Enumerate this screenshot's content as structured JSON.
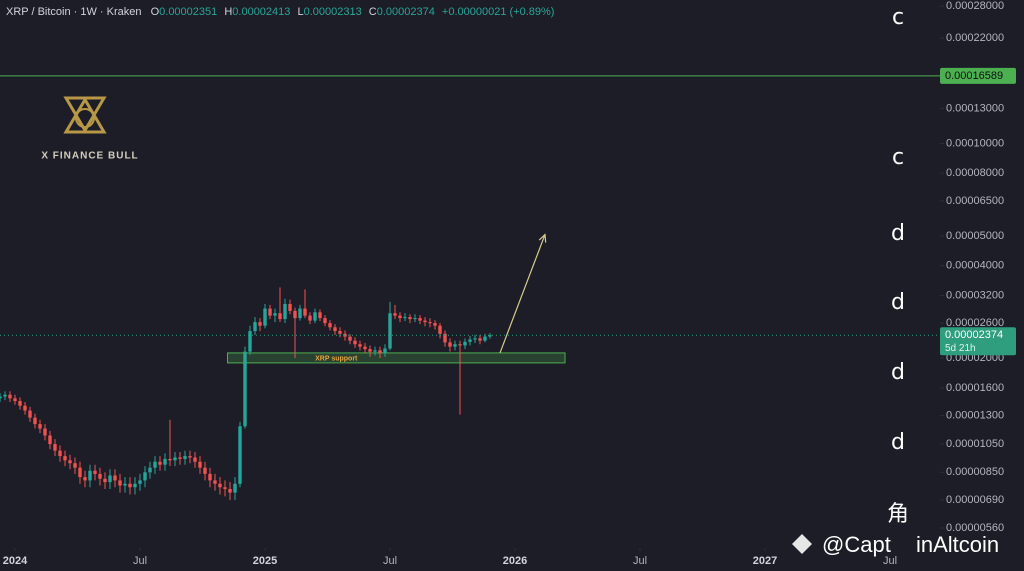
{
  "header": {
    "symbol": "XRP / Bitcoin · 1W · Kraken",
    "ohlc": [
      {
        "key": "O",
        "value": "0.00002351"
      },
      {
        "key": "H",
        "value": "0.00002413"
      },
      {
        "key": "L",
        "value": "0.00002313"
      },
      {
        "key": "C",
        "value": "0.00002374"
      }
    ],
    "change": "+0.00000021 (+0.89%)"
  },
  "watermark": "X FINANCE BULL",
  "source_watermark": [
    "@Capt",
    "inAltcoin"
  ],
  "overlay_glyphs": [
    "c",
    "c",
    "d",
    "d",
    "d",
    "d",
    "角"
  ],
  "chart_data": {
    "type": "candlestick",
    "log_scale": true,
    "grid": false,
    "up_color": "#26a69a",
    "down_color": "#ef5350",
    "x": [
      2023.94,
      2023.96,
      2023.98,
      2024,
      2024.02,
      2024.04,
      2024.06,
      2024.08,
      2024.1,
      2024.12,
      2024.14,
      2024.16,
      2024.18,
      2024.2,
      2024.22,
      2024.24,
      2024.26,
      2024.28,
      2024.3,
      2024.32,
      2024.34,
      2024.36,
      2024.38,
      2024.4,
      2024.42,
      2024.44,
      2024.46,
      2024.48,
      2024.5,
      2024.52,
      2024.54,
      2024.56,
      2024.58,
      2024.6,
      2024.62,
      2024.64,
      2024.66,
      2024.68,
      2024.7,
      2024.72,
      2024.74,
      2024.76,
      2024.78,
      2024.8,
      2024.82,
      2024.84,
      2024.86,
      2024.88,
      2024.9,
      2024.92,
      2024.94,
      2024.96,
      2024.98,
      2025,
      2025.02,
      2025.04,
      2025.06,
      2025.08,
      2025.1,
      2025.12,
      2025.14,
      2025.16,
      2025.18,
      2025.2,
      2025.22,
      2025.24,
      2025.26,
      2025.28,
      2025.3,
      2025.32,
      2025.34,
      2025.36,
      2025.38,
      2025.4,
      2025.42,
      2025.44,
      2025.46,
      2025.48,
      2025.5,
      2025.52,
      2025.54,
      2025.56,
      2025.58,
      2025.6,
      2025.62,
      2025.64,
      2025.66,
      2025.68,
      2025.7,
      2025.72,
      2025.74,
      2025.76,
      2025.78,
      2025.8,
      2025.82,
      2025.84,
      2025.86,
      2025.88,
      2025.9
    ],
    "open": [
      1.48e-05,
      1.5e-05,
      1.52e-05,
      1.48e-05,
      1.45e-05,
      1.4e-05,
      1.35e-05,
      1.28e-05,
      1.22e-05,
      1.18e-05,
      1.12e-05,
      1.05e-05,
      1e-05,
      9.6e-06,
      9.3e-06,
      9.1e-06,
      8.8e-06,
      8.2e-06,
      8e-06,
      8.6e-06,
      8.4e-06,
      8.1e-06,
      7.9e-06,
      8.3e-06,
      8e-06,
      7.7e-06,
      7.8e-06,
      7.6e-06,
      7.8e-06,
      8e-06,
      8.5e-06,
      8.8e-06,
      9.2e-06,
      9e-06,
      9.4e-06,
      9.3e-06,
      9.5e-06,
      9.4e-06,
      9.6e-06,
      9.5e-06,
      9.2e-06,
      8.8e-06,
      8.4e-06,
      8e-06,
      7.8e-06,
      7.6e-06,
      7.5e-06,
      7.3e-06,
      7.8e-06,
      1.2e-05,
      2.1e-05,
      2.45e-05,
      2.62e-05,
      2.55e-05,
      2.9e-05,
      2.75e-05,
      2.8e-05,
      2.68e-05,
      3e-05,
      2.85e-05,
      2.7e-05,
      2.9e-05,
      2.75e-05,
      2.65e-05,
      2.82e-05,
      2.7e-05,
      2.6e-05,
      2.52e-05,
      2.45e-05,
      2.4e-05,
      2.35e-05,
      2.28e-05,
      2.22e-05,
      2.18e-05,
      2.14e-05,
      2.1e-05,
      2.12e-05,
      2.08e-05,
      2.15e-05,
      2.8e-05,
      2.75e-05,
      2.7e-05,
      2.72e-05,
      2.68e-05,
      2.7e-05,
      2.65e-05,
      2.62e-05,
      2.6e-05,
      2.55e-05,
      2.4e-05,
      2.25e-05,
      2.18e-05,
      2.22e-05,
      2.2e-05,
      2.26e-05,
      2.3e-05,
      2.32e-05,
      2.28e-05,
      2.351e-05
    ],
    "high": [
      1.54e-05,
      1.56e-05,
      1.56e-05,
      1.52e-05,
      1.49e-05,
      1.44e-05,
      1.39e-05,
      1.32e-05,
      1.26e-05,
      1.22e-05,
      1.16e-05,
      1.09e-05,
      1.04e-05,
      1e-05,
      9.7e-06,
      9.5e-06,
      9.2e-06,
      8.6e-06,
      9e-06,
      9e-06,
      8.8e-06,
      8.5e-06,
      8.7e-06,
      8.7e-06,
      8.4e-06,
      8.2e-06,
      8.2e-06,
      8.2e-06,
      8.4e-06,
      8.9e-06,
      9.2e-06,
      9.6e-06,
      9.6e-06,
      9.8e-06,
      1.26e-05,
      9.9e-06,
      9.9e-06,
      1e-05,
      1e-05,
      9.9e-06,
      9.6e-06,
      9.2e-06,
      8.8e-06,
      8.4e-06,
      8.2e-06,
      8e-06,
      7.9e-06,
      8.2e-06,
      1.24e-05,
      2.18e-05,
      2.55e-05,
      2.72e-05,
      2.7e-05,
      3e-05,
      2.98e-05,
      2.9e-05,
      3.4e-05,
      3.12e-05,
      3.1e-05,
      2.92e-05,
      2.98e-05,
      3.35e-05,
      2.82e-05,
      2.9e-05,
      2.88e-05,
      2.76e-05,
      2.66e-05,
      2.58e-05,
      2.52e-05,
      2.46e-05,
      2.4e-05,
      2.34e-05,
      2.28e-05,
      2.24e-05,
      2.2e-05,
      2.18e-05,
      2.18e-05,
      2.22e-05,
      3.05e-05,
      2.98e-05,
      2.82e-05,
      2.8e-05,
      2.78e-05,
      2.78e-05,
      2.76e-05,
      2.72e-05,
      2.7e-05,
      2.66e-05,
      2.6e-05,
      2.46e-05,
      2.32e-05,
      2.28e-05,
      2.28e-05,
      2.32e-05,
      2.36e-05,
      2.38e-05,
      2.38e-05,
      2.4e-05,
      2.413e-05
    ],
    "low": [
      1.44e-05,
      1.46e-05,
      1.44e-05,
      1.41e-05,
      1.36e-05,
      1.31e-05,
      1.24e-05,
      1.18e-05,
      1.14e-05,
      1.08e-05,
      1.01e-05,
      9.6e-06,
      9.2e-06,
      8.9e-06,
      8.7e-06,
      8.4e-06,
      7.8e-06,
      7.6e-06,
      7.6e-06,
      8e-06,
      7.7e-06,
      7.5e-06,
      7.5e-06,
      7.6e-06,
      7.3e-06,
      7.3e-06,
      7.2e-06,
      7.2e-06,
      7.4e-06,
      7.6e-06,
      8.1e-06,
      8.4e-06,
      8.6e-06,
      8.6e-06,
      8.9e-06,
      8.9e-06,
      9e-06,
      9e-06,
      9.1e-06,
      8.8e-06,
      8.4e-06,
      8e-06,
      7.6e-06,
      7.4e-06,
      7.2e-06,
      7.1e-06,
      6.9e-06,
      6.9e-06,
      7.6e-06,
      1.18e-05,
      2.05e-05,
      2.38e-05,
      2.45e-05,
      2.5e-05,
      2.68e-05,
      2.62e-05,
      2.62e-05,
      2.6e-05,
      2.78e-05,
      2e-05,
      2.65e-05,
      2.7e-05,
      2.58e-05,
      2.6e-05,
      2.64e-05,
      2.54e-05,
      2.46e-05,
      2.38e-05,
      2.34e-05,
      2.28e-05,
      2.22e-05,
      2.16e-05,
      2.12e-05,
      2.08e-05,
      2.02e-05,
      2.04e-05,
      2e-05,
      2.02e-05,
      2.12e-05,
      2.68e-05,
      2.62e-05,
      2.64e-05,
      2.6e-05,
      2.62e-05,
      2.58e-05,
      2.54e-05,
      2.52e-05,
      2.48e-05,
      2.32e-05,
      2.18e-05,
      2.1e-05,
      2.12e-05,
      1.31e-05,
      2.14e-05,
      2.2e-05,
      2.24e-05,
      2.22e-05,
      2.25e-05,
      2.313e-05
    ],
    "close": [
      1.5e-05,
      1.52e-05,
      1.48e-05,
      1.45e-05,
      1.4e-05,
      1.35e-05,
      1.28e-05,
      1.22e-05,
      1.18e-05,
      1.12e-05,
      1.05e-05,
      1e-05,
      9.6e-06,
      9.3e-06,
      9.1e-06,
      8.8e-06,
      8.2e-06,
      8e-06,
      8.6e-06,
      8.4e-06,
      8.1e-06,
      7.9e-06,
      8.3e-06,
      8e-06,
      7.7e-06,
      7.8e-06,
      7.6e-06,
      7.8e-06,
      8e-06,
      8.5e-06,
      8.8e-06,
      9.2e-06,
      9e-06,
      9.4e-06,
      9.3e-06,
      9.5e-06,
      9.4e-06,
      9.6e-06,
      9.5e-06,
      9.2e-06,
      8.8e-06,
      8.4e-06,
      8e-06,
      7.8e-06,
      7.6e-06,
      7.5e-06,
      7.3e-06,
      7.8e-06,
      1.2e-05,
      2.1e-05,
      2.45e-05,
      2.62e-05,
      2.55e-05,
      2.9e-05,
      2.75e-05,
      2.8e-05,
      2.68e-05,
      3e-05,
      2.85e-05,
      2.7e-05,
      2.9e-05,
      2.75e-05,
      2.65e-05,
      2.82e-05,
      2.7e-05,
      2.6e-05,
      2.52e-05,
      2.45e-05,
      2.4e-05,
      2.35e-05,
      2.28e-05,
      2.22e-05,
      2.18e-05,
      2.14e-05,
      2.1e-05,
      2.12e-05,
      2.08e-05,
      2.15e-05,
      2.8e-05,
      2.75e-05,
      2.7e-05,
      2.72e-05,
      2.68e-05,
      2.7e-05,
      2.65e-05,
      2.62e-05,
      2.6e-05,
      2.55e-05,
      2.4e-05,
      2.25e-05,
      2.18e-05,
      2.22e-05,
      2.2e-05,
      2.26e-05,
      2.3e-05,
      2.32e-05,
      2.28e-05,
      2.351e-05,
      2.374e-05
    ],
    "xlim": [
      2023.94,
      2027.7
    ],
    "xticks": [
      2024,
      {
        "value": 2024.5,
        "label": "Jul"
      },
      2025,
      {
        "value": 2025.5,
        "label": "Jul"
      },
      2026,
      {
        "value": 2026.5,
        "label": "Jul"
      },
      2027,
      {
        "value": 2027.5,
        "label": "Jul"
      }
    ],
    "ylim": [
      5.6e-06,
      0.00028
    ],
    "yticks": [
      {
        "value": 0.00028,
        "label": "0.00028000"
      },
      {
        "value": 0.00022,
        "label": "0.00022000"
      },
      {
        "value": 0.00013,
        "label": "0.00013000"
      },
      {
        "value": 0.0001,
        "label": "0.00010000"
      },
      {
        "value": 8e-05,
        "label": "0.00008000"
      },
      {
        "value": 6.5e-05,
        "label": "0.00006500"
      },
      {
        "value": 5e-05,
        "label": "0.00005000"
      },
      {
        "value": 4e-05,
        "label": "0.00004000"
      },
      {
        "value": 3.2e-05,
        "label": "0.00003200"
      },
      {
        "value": 2.6e-05,
        "label": "0.00002600"
      },
      {
        "value": 2e-05,
        "label": "0.00002000"
      },
      {
        "value": 1.6e-05,
        "label": "0.00001600"
      },
      {
        "value": 1.3e-05,
        "label": "0.00001300"
      },
      {
        "value": 1.05e-05,
        "label": "0.00001050"
      },
      {
        "value": 8.5e-06,
        "label": "0.00000850"
      },
      {
        "value": 6.9e-06,
        "label": "0.00000690"
      },
      {
        "value": 5.6e-06,
        "label": "0.00000560"
      }
    ],
    "level_line": {
      "value": 0.00016589,
      "label": "0.00016589",
      "color": "#4caf50"
    },
    "last_price": {
      "value": 2.374e-05,
      "label": "0.00002374",
      "countdown": "5d 21h",
      "color": "#2e9e7e"
    },
    "support_zone": {
      "label": "XRP support",
      "x": [
        2024.85,
        2026.2
      ],
      "y": [
        1.93e-05,
        2.08e-05
      ],
      "color": "#4caf50"
    },
    "arrow": {
      "x": [
        2025.94,
        2026.12
      ],
      "y": [
        2.08e-05,
        5.05e-05
      ],
      "color": "#d8cc8a"
    }
  }
}
